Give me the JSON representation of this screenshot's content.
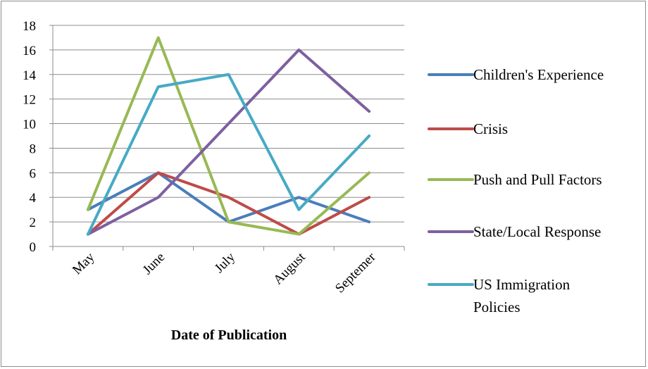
{
  "chart_data": {
    "type": "line",
    "categories": [
      "May",
      "June",
      "July",
      "August",
      "Septemer"
    ],
    "series": [
      {
        "name": "Children's Experience",
        "values": [
          3,
          6,
          2,
          4,
          2
        ],
        "color": "#4a7ebb"
      },
      {
        "name": "Crisis",
        "values": [
          1,
          6,
          4,
          1,
          4
        ],
        "color": "#be4b48"
      },
      {
        "name": "Push and Pull Factors",
        "values": [
          3,
          17,
          2,
          1,
          6
        ],
        "color": "#98b954"
      },
      {
        "name": "State/Local Response",
        "values": [
          1,
          4,
          10,
          16,
          11
        ],
        "color": "#7d60a0"
      },
      {
        "name": "US Immigration Policies",
        "values": [
          1,
          13,
          14,
          3,
          9
        ],
        "color": "#46aac5"
      }
    ],
    "title": "",
    "xlabel": "Date of Publication",
    "ylabel": "",
    "ylim": [
      0,
      18
    ],
    "yticks": [
      0,
      2,
      4,
      6,
      8,
      10,
      12,
      14,
      16,
      18
    ],
    "grid": true,
    "legend_position": "right"
  }
}
